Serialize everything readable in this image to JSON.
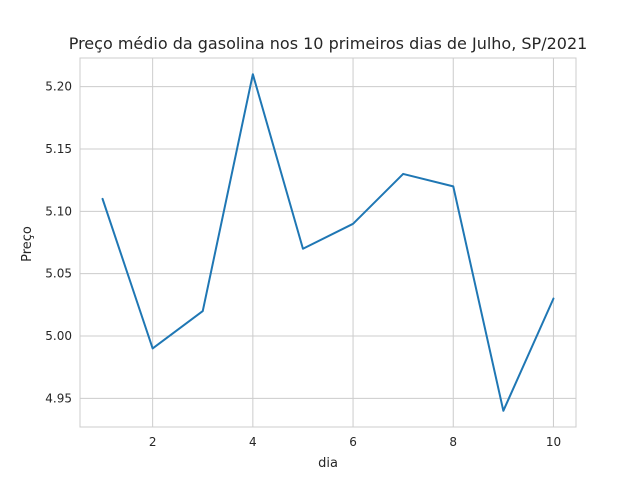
{
  "chart_data": {
    "type": "line",
    "title": "Preço médio da gasolina nos 10 primeiros dias de Julho, SP/2021",
    "xlabel": "dia",
    "ylabel": "Preço",
    "x": [
      1,
      2,
      3,
      4,
      5,
      6,
      7,
      8,
      9,
      10
    ],
    "series": [
      {
        "values": [
          5.11,
          4.99,
          5.02,
          5.21,
          5.07,
          5.09,
          5.13,
          5.12,
          4.94,
          5.03
        ],
        "color": "#1f77b4"
      }
    ],
    "xlim": [
      0.55,
      10.45
    ],
    "ylim": [
      4.927,
      5.223
    ],
    "xticks": [
      2,
      4,
      6,
      8,
      10
    ],
    "xtick_labels": [
      "2",
      "4",
      "6",
      "8",
      "10"
    ],
    "yticks": [
      4.95,
      5.0,
      5.05,
      5.1,
      5.15,
      5.2
    ],
    "ytick_labels": [
      "4.95",
      "5.00",
      "5.05",
      "5.10",
      "5.15",
      "5.20"
    ],
    "grid": true,
    "style": "whitegrid"
  }
}
